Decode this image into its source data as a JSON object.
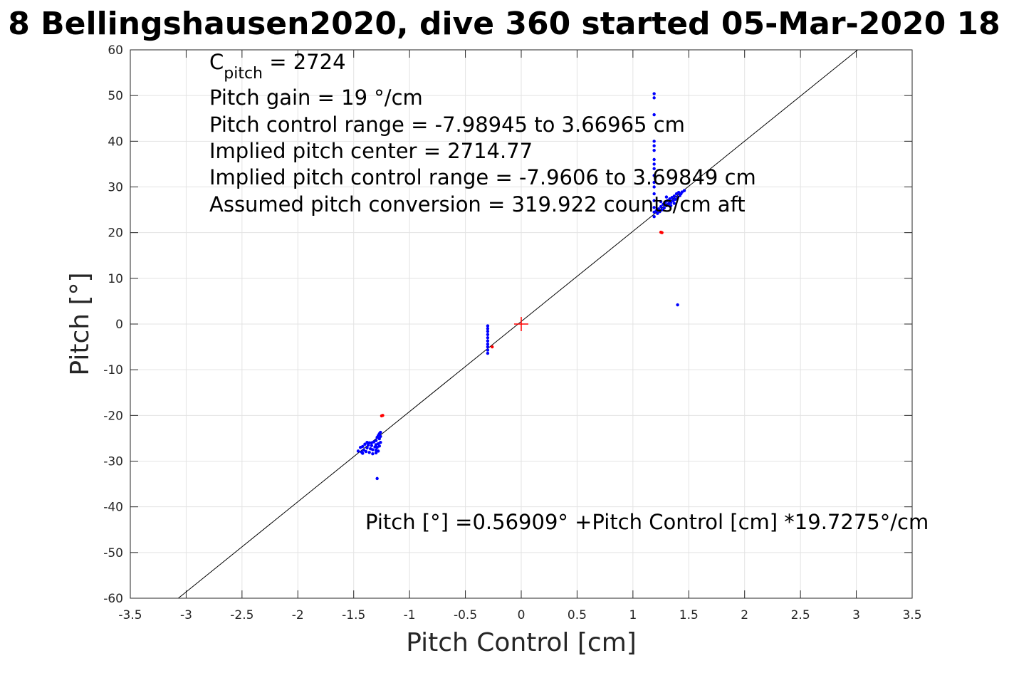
{
  "chart_data": {
    "type": "scatter",
    "title": "8 Bellingshausen2020, dive 360 started 05-Mar-2020 18",
    "xlabel": "Pitch Control [cm]",
    "ylabel": "Pitch [°]",
    "xlim": [
      -3.5,
      3.5
    ],
    "ylim": [
      -60,
      60
    ],
    "xticks": [
      -3.5,
      -3,
      -2.5,
      -2,
      -1.5,
      -1,
      -0.5,
      0,
      0.5,
      1,
      1.5,
      2,
      2.5,
      3,
      3.5
    ],
    "yticks": [
      -60,
      -50,
      -40,
      -30,
      -20,
      -10,
      0,
      10,
      20,
      30,
      40,
      50,
      60
    ],
    "xtick_labels": [
      "-3.5",
      "-3",
      "-2.5",
      "-2",
      "-1.5",
      "-1",
      "-0.5",
      "0",
      "0.5",
      "1",
      "1.5",
      "2",
      "2.5",
      "3",
      "3.5"
    ],
    "ytick_labels": [
      "-60",
      "-50",
      "-40",
      "-30",
      "-20",
      "-10",
      "0",
      "10",
      "20",
      "30",
      "40",
      "50",
      "60"
    ],
    "grid": true,
    "fit_line": {
      "intercept": 0.56909,
      "slope": 19.7275,
      "color": "#000000"
    },
    "center_marker": {
      "x": 0,
      "y": 0,
      "color": "#ff0000"
    },
    "annotations": {
      "c_pitch_main": "C",
      "c_pitch_sub": "pitch",
      "c_pitch_value": " = 2724",
      "lines": [
        "Pitch gain = 19 °/cm",
        "Pitch control range = -7.98945 to 3.66965 cm",
        "Implied pitch center = 2714.77",
        "Implied pitch control range = -7.9606 to 3.69849 cm",
        "Assumed pitch conversion = 319.922 counts/cm aft"
      ],
      "fit_equation": "Pitch [°] =0.56909° +Pitch Control [cm] *19.7275°/cm"
    },
    "series": [
      {
        "color": "#0000ff",
        "points": [
          [
            -1.46,
            -27.8
          ],
          [
            -1.44,
            -27.0
          ],
          [
            -1.43,
            -28.0
          ],
          [
            -1.42,
            -26.8
          ],
          [
            -1.41,
            -27.6
          ],
          [
            -1.4,
            -26.3
          ],
          [
            -1.39,
            -27.9
          ],
          [
            -1.38,
            -27.1
          ],
          [
            -1.37,
            -26.5
          ],
          [
            -1.36,
            -28.1
          ],
          [
            -1.35,
            -27.3
          ],
          [
            -1.34,
            -26.0
          ],
          [
            -1.33,
            -27.5
          ],
          [
            -1.32,
            -25.8
          ],
          [
            -1.31,
            -26.9
          ],
          [
            -1.3,
            -28.2
          ],
          [
            -1.3,
            -27.6
          ],
          [
            -1.3,
            -26.4
          ],
          [
            -1.3,
            -25.5
          ],
          [
            -1.29,
            -27.0
          ],
          [
            -1.29,
            -24.8
          ],
          [
            -1.28,
            -26.2
          ],
          [
            -1.28,
            -24.4
          ],
          [
            -1.28,
            -27.8
          ],
          [
            -1.27,
            -25.1
          ],
          [
            -1.27,
            -24.0
          ],
          [
            -1.27,
            -26.7
          ],
          [
            -1.26,
            -23.7
          ],
          [
            -1.26,
            -24.6
          ],
          [
            -1.26,
            -25.9
          ],
          [
            -1.42,
            -28.3
          ],
          [
            -1.38,
            -25.9
          ],
          [
            -1.34,
            -26.6
          ],
          [
            -1.33,
            -28.4
          ],
          [
            -1.36,
            -26.0
          ],
          [
            -1.29,
            -33.8
          ],
          [
            -0.3,
            -0.4
          ],
          [
            -0.3,
            -1.0
          ],
          [
            -0.3,
            -1.6
          ],
          [
            -0.3,
            -2.3
          ],
          [
            -0.3,
            -3.0
          ],
          [
            -0.3,
            -3.7
          ],
          [
            -0.3,
            -4.4
          ],
          [
            -0.3,
            -5.0
          ],
          [
            -0.3,
            -5.7
          ],
          [
            -0.3,
            -6.4
          ],
          [
            1.19,
            50.4
          ],
          [
            1.19,
            49.5
          ],
          [
            1.19,
            45.8
          ],
          [
            1.19,
            40.0
          ],
          [
            1.19,
            39.0
          ],
          [
            1.19,
            38.0
          ],
          [
            1.19,
            36.0
          ],
          [
            1.19,
            35.0
          ],
          [
            1.19,
            34.0
          ],
          [
            1.19,
            32.5
          ],
          [
            1.19,
            31.0
          ],
          [
            1.19,
            30.0
          ],
          [
            1.19,
            28.5
          ],
          [
            1.19,
            27.0
          ],
          [
            1.19,
            25.5
          ],
          [
            1.19,
            24.5
          ],
          [
            1.19,
            23.5
          ],
          [
            1.21,
            24.8
          ],
          [
            1.22,
            24.2
          ],
          [
            1.23,
            25.2
          ],
          [
            1.24,
            24.6
          ],
          [
            1.25,
            25.7
          ],
          [
            1.26,
            25.0
          ],
          [
            1.27,
            26.2
          ],
          [
            1.28,
            25.4
          ],
          [
            1.29,
            26.6
          ],
          [
            1.3,
            25.9
          ],
          [
            1.31,
            27.0
          ],
          [
            1.32,
            26.3
          ],
          [
            1.33,
            27.4
          ],
          [
            1.34,
            26.6
          ],
          [
            1.35,
            27.7
          ],
          [
            1.36,
            27.0
          ],
          [
            1.37,
            28.0
          ],
          [
            1.38,
            27.3
          ],
          [
            1.39,
            28.5
          ],
          [
            1.4,
            27.7
          ],
          [
            1.41,
            28.8
          ],
          [
            1.42,
            28.1
          ],
          [
            1.43,
            28.5
          ],
          [
            1.44,
            28.9
          ],
          [
            1.46,
            29.2
          ],
          [
            1.3,
            27.8
          ],
          [
            1.34,
            25.9
          ],
          [
            1.25,
            26.8
          ],
          [
            1.37,
            26.4
          ],
          [
            1.4,
            4.2
          ]
        ]
      },
      {
        "color": "#ff0000",
        "points": [
          [
            -1.25,
            -20.1
          ],
          [
            -1.24,
            -20.0
          ],
          [
            -0.26,
            -5.0
          ],
          [
            1.25,
            20.1
          ],
          [
            1.26,
            20.0
          ]
        ]
      }
    ]
  }
}
